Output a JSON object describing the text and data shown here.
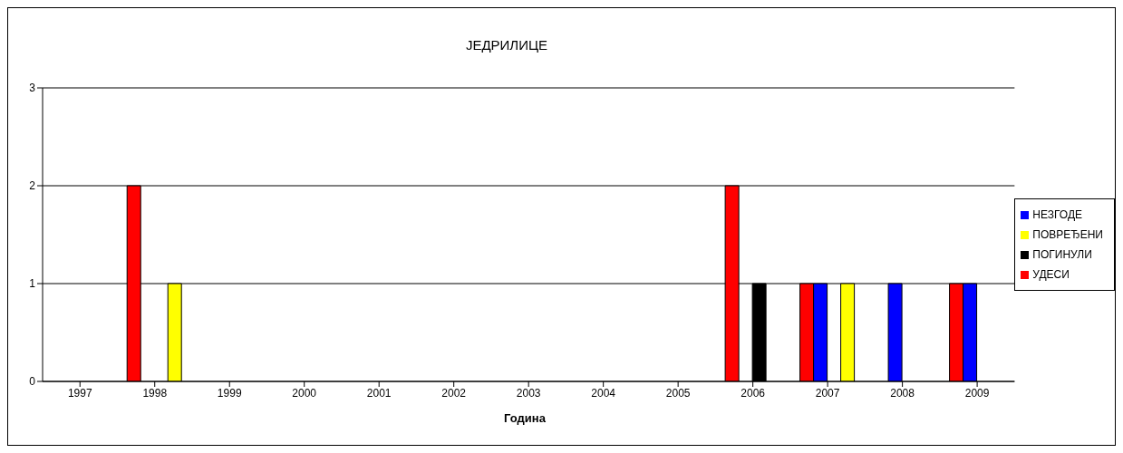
{
  "chart_data": {
    "type": "bar",
    "title": "ЈЕДРИЛИЦЕ",
    "xlabel": "Година",
    "categories": [
      "1997",
      "1998",
      "1999",
      "2000",
      "2001",
      "2002",
      "2003",
      "2004",
      "2005",
      "2006",
      "2007",
      "2008",
      "2009"
    ],
    "series": [
      {
        "name": "УДЕСИ",
        "color": "#ff0000",
        "values": [
          0,
          2,
          0,
          0,
          0,
          0,
          0,
          0,
          0,
          2,
          1,
          0,
          1
        ]
      },
      {
        "name": "НЕЗГОДЕ",
        "color": "#0000ff",
        "values": [
          0,
          0,
          0,
          0,
          0,
          0,
          0,
          0,
          0,
          0,
          1,
          1,
          1
        ]
      },
      {
        "name": "ПОГИНУЛИ",
        "color": "#000000",
        "values": [
          0,
          0,
          0,
          0,
          0,
          0,
          0,
          0,
          0,
          1,
          0,
          0,
          0
        ]
      },
      {
        "name": "ПОВРЕЂЕНИ",
        "color": "#ffff00",
        "values": [
          0,
          1,
          0,
          0,
          0,
          0,
          0,
          0,
          0,
          0,
          1,
          0,
          0
        ]
      }
    ],
    "ylim": [
      0,
      3
    ],
    "yticks": [
      0,
      1,
      2,
      3
    ],
    "grid": "y",
    "legend": "right"
  }
}
